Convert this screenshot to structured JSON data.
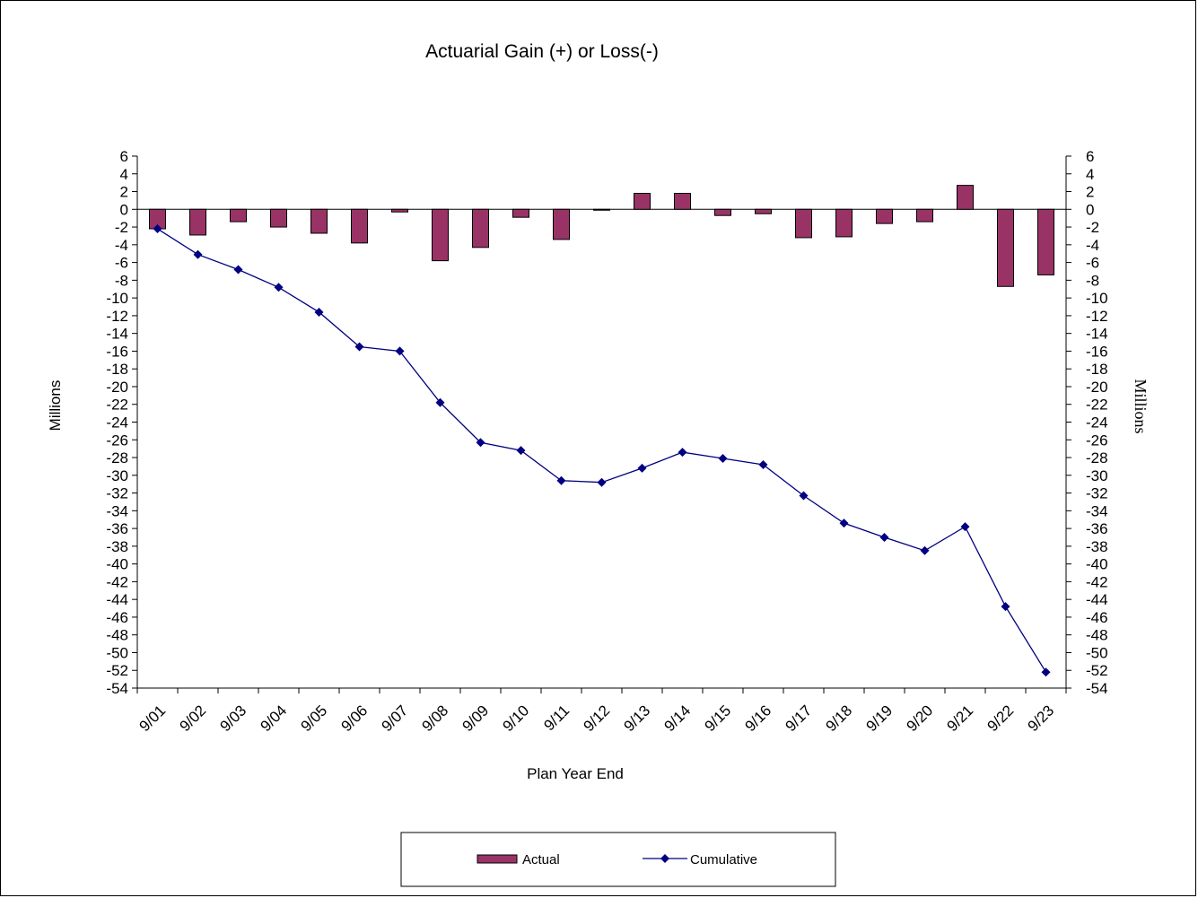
{
  "chart_data": {
    "type": "bar",
    "title": "Actuarial Gain (+) or Loss(-)",
    "xlabel": "Plan Year End",
    "ylabel_left": "Millions",
    "ylabel_right": "Millions",
    "ylim": [
      -54,
      6
    ],
    "ytick_step": 2,
    "categories": [
      "9/01",
      "9/02",
      "9/03",
      "9/04",
      "9/05",
      "9/06",
      "9/07",
      "9/08",
      "9/09",
      "9/10",
      "9/11",
      "9/12",
      "9/13",
      "9/14",
      "9/15",
      "9/16",
      "9/17",
      "9/18",
      "9/19",
      "9/20",
      "9/21",
      "9/22",
      "9/23"
    ],
    "series": [
      {
        "name": "Actual",
        "type": "bar",
        "color": "#993366",
        "values": [
          -2.2,
          -2.9,
          -1.4,
          -2.0,
          -2.7,
          -3.8,
          -0.3,
          -5.8,
          -4.3,
          -0.9,
          -3.4,
          -0.1,
          1.8,
          1.8,
          -0.7,
          -0.5,
          -3.2,
          -3.1,
          -1.6,
          -1.4,
          2.7,
          -8.7,
          -7.4
        ]
      },
      {
        "name": "Cumulative",
        "type": "line",
        "color": "#000080",
        "marker": "diamond",
        "values": [
          -2.2,
          -5.1,
          -6.8,
          -8.8,
          -11.6,
          -15.5,
          -16.0,
          -21.8,
          -26.3,
          -27.2,
          -30.6,
          -30.8,
          -29.2,
          -27.4,
          -28.1,
          -28.8,
          -32.3,
          -35.4,
          -37.0,
          -38.5,
          -35.8,
          -44.8,
          -52.2
        ]
      }
    ],
    "legend_position": "bottom-center",
    "grid": false
  }
}
